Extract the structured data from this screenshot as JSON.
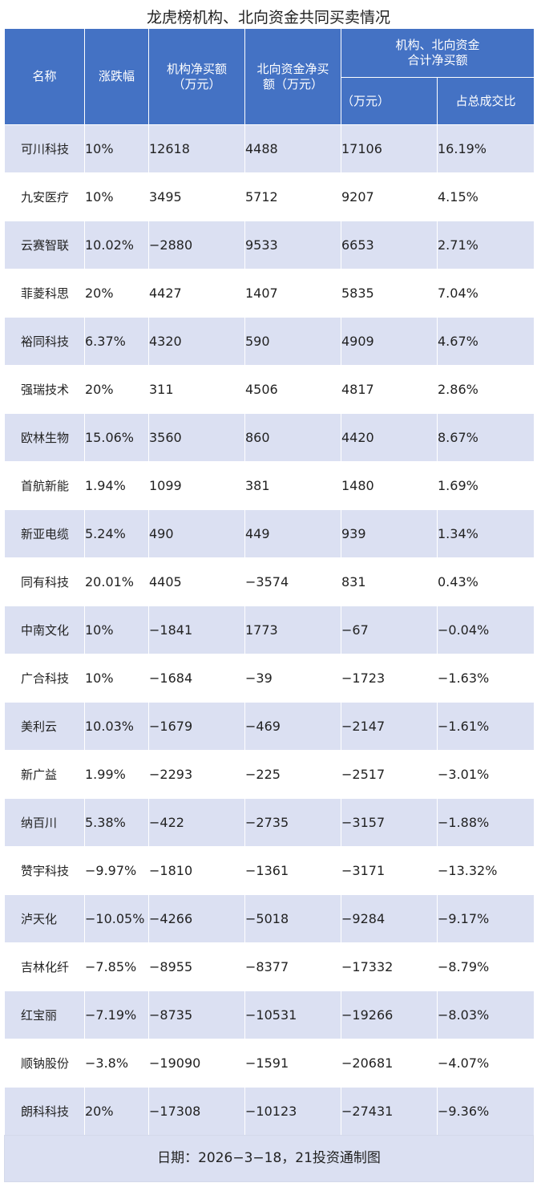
{
  "title": "龙虎榜机构、北向资金共同买卖情况",
  "headers": {
    "name": "名称",
    "change": "涨跌幅",
    "inst_l1": "机构净买额",
    "inst_l2": "（万元）",
    "north_l1": "北向资金净买",
    "north_l2": "额（万元）",
    "combined_l1": "机构、北向资金",
    "combined_l2": "合计净买额",
    "combined_sub_amount": "（万元）",
    "combined_sub_ratio": "占总成交比"
  },
  "rows": [
    {
      "name": "可川科技",
      "change": "10%",
      "inst": "12618",
      "north": "4488",
      "total": "17106",
      "ratio": "16.19%"
    },
    {
      "name": "九安医疗",
      "change": "10%",
      "inst": "3495",
      "north": "5712",
      "total": "9207",
      "ratio": "4.15%"
    },
    {
      "name": "云赛智联",
      "change": "10.02%",
      "inst": "−2880",
      "north": "9533",
      "total": "6653",
      "ratio": "2.71%"
    },
    {
      "name": "菲菱科思",
      "change": "20%",
      "inst": "4427",
      "north": "1407",
      "total": "5835",
      "ratio": "7.04%"
    },
    {
      "name": "裕同科技",
      "change": "6.37%",
      "inst": "4320",
      "north": "590",
      "total": "4909",
      "ratio": "4.67%"
    },
    {
      "name": "强瑞技术",
      "change": "20%",
      "inst": "311",
      "north": "4506",
      "total": "4817",
      "ratio": "2.86%"
    },
    {
      "name": "欧林生物",
      "change": "15.06%",
      "inst": "3560",
      "north": "860",
      "total": "4420",
      "ratio": "8.67%"
    },
    {
      "name": "首航新能",
      "change": "1.94%",
      "inst": "1099",
      "north": "381",
      "total": "1480",
      "ratio": "1.69%"
    },
    {
      "name": "新亚电缆",
      "change": "5.24%",
      "inst": "490",
      "north": "449",
      "total": "939",
      "ratio": "1.34%"
    },
    {
      "name": "同有科技",
      "change": "20.01%",
      "inst": "4405",
      "north": "−3574",
      "total": "831",
      "ratio": "0.43%"
    },
    {
      "name": "中南文化",
      "change": "10%",
      "inst": "−1841",
      "north": "1773",
      "total": "−67",
      "ratio": "−0.04%"
    },
    {
      "name": "广合科技",
      "change": "10%",
      "inst": "−1684",
      "north": "−39",
      "total": "−1723",
      "ratio": "−1.63%"
    },
    {
      "name": "美利云",
      "change": "10.03%",
      "inst": "−1679",
      "north": "−469",
      "total": "−2147",
      "ratio": "−1.61%"
    },
    {
      "name": "新广益",
      "change": "1.99%",
      "inst": "−2293",
      "north": "−225",
      "total": "−2517",
      "ratio": "−3.01%"
    },
    {
      "name": "纳百川",
      "change": "5.38%",
      "inst": "−422",
      "north": "−2735",
      "total": "−3157",
      "ratio": "−1.88%"
    },
    {
      "name": "赞宇科技",
      "change": "−9.97%",
      "inst": "−1810",
      "north": "−1361",
      "total": "−3171",
      "ratio": "−13.32%"
    },
    {
      "name": "泸天化",
      "change": "−10.05%",
      "inst": "−4266",
      "north": "−5018",
      "total": "−9284",
      "ratio": "−9.17%"
    },
    {
      "name": "吉林化纤",
      "change": "−7.85%",
      "inst": "−8955",
      "north": "−8377",
      "total": "−17332",
      "ratio": "−8.79%"
    },
    {
      "name": "红宝丽",
      "change": "−7.19%",
      "inst": "−8735",
      "north": "−10531",
      "total": "−19266",
      "ratio": "−8.03%"
    },
    {
      "name": "顺钠股份",
      "change": "−3.8%",
      "inst": "−19090",
      "north": "−1591",
      "total": "−20681",
      "ratio": "−4.07%"
    },
    {
      "name": "朗科科技",
      "change": "20%",
      "inst": "−17308",
      "north": "−10123",
      "total": "−27431",
      "ratio": "−9.36%"
    }
  ],
  "footer": "日期：2026−3−18，21投资通制图",
  "colors": {
    "header_bg": "#4472c4",
    "stripe": "#dbe0f2"
  }
}
